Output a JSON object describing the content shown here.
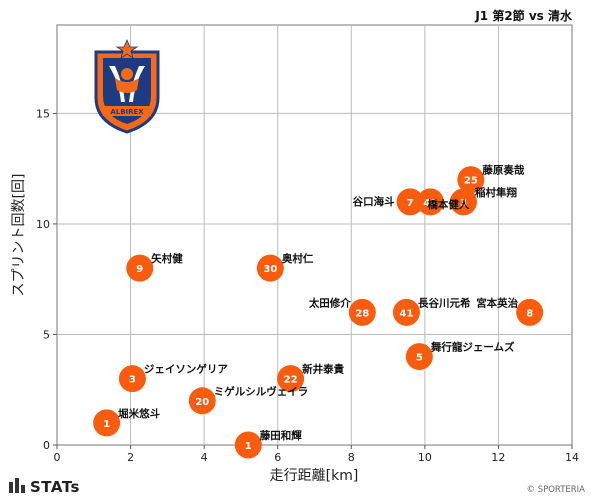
{
  "header": {
    "match_title": "J1 第2節 vs 清水"
  },
  "footer": {
    "brand": "STATs",
    "copyright": "© SPORTERIA"
  },
  "logo": {
    "club_text": "ALBIREX",
    "icon": "albirex-niigata-crest"
  },
  "colors": {
    "point": "#f95c0e",
    "grid": "#bbbbbb",
    "brand_bars": "#333333"
  },
  "chart_data": {
    "type": "scatter",
    "xlabel": "走行距離[km]",
    "ylabel": "スプリント回数[回]",
    "xlim": [
      0,
      14
    ],
    "ylim": [
      0,
      19
    ],
    "xticks": [
      0,
      2,
      4,
      6,
      8,
      10,
      12,
      14
    ],
    "yticks": [
      0,
      5,
      10,
      15
    ],
    "grid": true,
    "points": [
      {
        "number": "25",
        "name": "藤原奏哉",
        "x": 11.25,
        "y": 12,
        "label_pos": "right"
      },
      {
        "number": "3",
        "name": "稲村隼翔",
        "x": 11.05,
        "y": 11,
        "label_pos": "right"
      },
      {
        "number": "42",
        "name": "橋本健人",
        "x": 10.15,
        "y": 11,
        "label_pos": "below-right"
      },
      {
        "number": "7",
        "name": "谷口海斗",
        "x": 9.6,
        "y": 11,
        "label_pos": "below-left"
      },
      {
        "number": "9",
        "name": "矢村健",
        "x": 2.25,
        "y": 8,
        "label_pos": "right"
      },
      {
        "number": "30",
        "name": "奥村仁",
        "x": 5.8,
        "y": 8,
        "label_pos": "right"
      },
      {
        "number": "28",
        "name": "太田修介",
        "x": 8.3,
        "y": 6,
        "label_pos": "left"
      },
      {
        "number": "41",
        "name": "長谷川元希",
        "x": 9.5,
        "y": 6,
        "label_pos": "right"
      },
      {
        "number": "8",
        "name": "宮本英治",
        "x": 12.85,
        "y": 6,
        "label_pos": "left"
      },
      {
        "number": "5",
        "name": "舞行龍ジェームズ",
        "x": 9.85,
        "y": 4,
        "label_pos": "right"
      },
      {
        "number": "3",
        "name": "ジェイソンゲリア",
        "x": 2.05,
        "y": 3,
        "label_pos": "right"
      },
      {
        "number": "22",
        "name": "新井泰貴",
        "x": 6.35,
        "y": 3,
        "label_pos": "right"
      },
      {
        "number": "20",
        "name": "ミゲルシルヴェイラ",
        "x": 3.95,
        "y": 2,
        "label_pos": "right"
      },
      {
        "number": "1",
        "name": "堀米悠斗",
        "x": 1.35,
        "y": 1,
        "label_pos": "right"
      },
      {
        "number": "1",
        "name": "藤田和輝",
        "x": 5.2,
        "y": 0,
        "label_pos": "right"
      }
    ]
  }
}
